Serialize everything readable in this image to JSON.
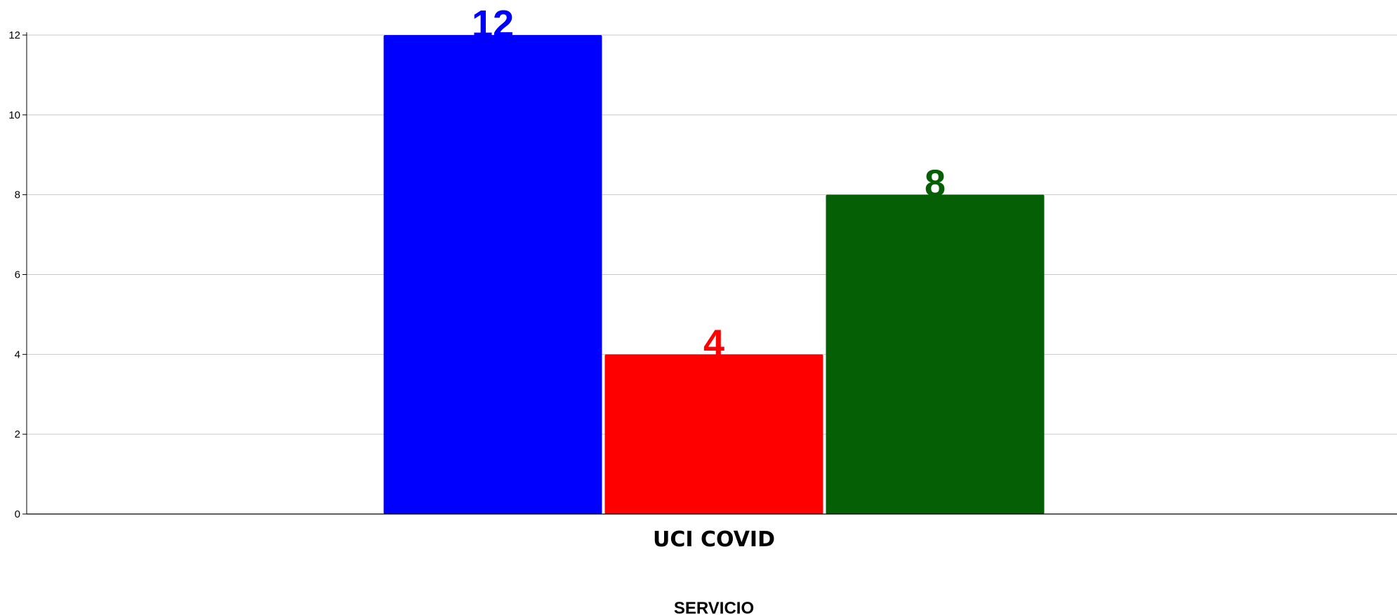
{
  "chart_data": {
    "type": "bar",
    "categories": [
      "UCI COVID"
    ],
    "series": [
      {
        "values": [
          12
        ],
        "color": "#0000ff"
      },
      {
        "values": [
          4
        ],
        "color": "#ff0000"
      },
      {
        "values": [
          8
        ],
        "color": "#056005"
      }
    ],
    "xlabel": "SERVICIO",
    "ylabel": "",
    "ylim": [
      0,
      12
    ],
    "yticks": [
      "0",
      "2",
      "4",
      "6",
      "8",
      "10",
      "12"
    ],
    "grid": true,
    "legend": "none"
  }
}
